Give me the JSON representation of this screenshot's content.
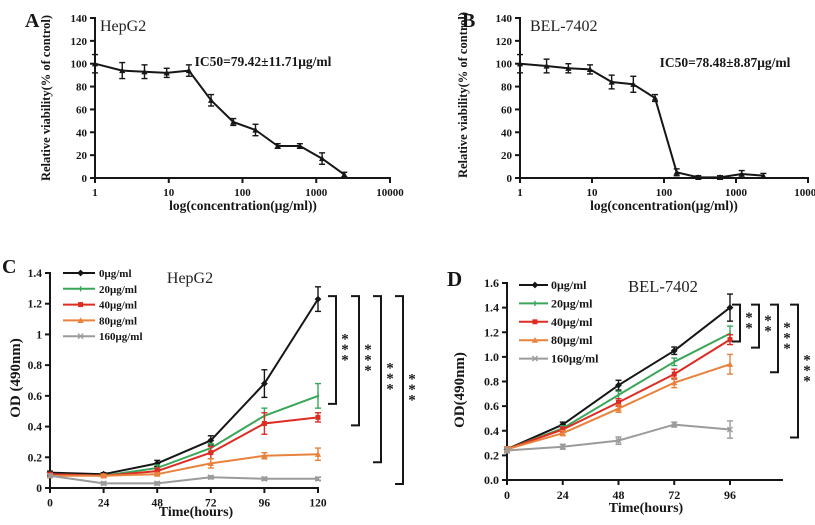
{
  "figure": {
    "background": "#ffffff",
    "description_colors": {
      "axis": "#161616",
      "conc0": "#161616",
      "conc20": "#3aa65a",
      "conc40": "#dd2c23",
      "conc80": "#e8823c",
      "conc160": "#9b9b9b"
    }
  },
  "chart_data": [
    {
      "panel_label": "A",
      "type": "line",
      "title": "HepG2",
      "annotation": "IC50=79.42±11.71μg/ml",
      "xlabel": "log(concentration(μg/ml))",
      "ylabel": "Relative viability(% of control)",
      "xscale": "log",
      "xlim": [
        1,
        10000
      ],
      "ylim": [
        0,
        140
      ],
      "xticks": [
        1,
        10,
        100,
        1000,
        10000
      ],
      "xtick_labels": [
        "1",
        "10",
        "100",
        "1000",
        "10000"
      ],
      "yticks": [
        0,
        20,
        40,
        60,
        80,
        100,
        120,
        140
      ],
      "ytick_labels": [
        "0",
        "20",
        "40",
        "60",
        "80",
        "100",
        "120",
        "140"
      ],
      "grid": false,
      "legend_position": "none",
      "series": [
        {
          "name": "viability",
          "color": "#161616",
          "marker": "triangle",
          "x": [
            1,
            2.34,
            4.69,
            9.38,
            18.75,
            37.5,
            75,
            150,
            300,
            600,
            1200,
            2400
          ],
          "y": [
            100,
            94,
            93,
            92,
            94,
            68,
            49,
            42,
            28,
            28,
            17,
            3
          ],
          "err": [
            8,
            7,
            6,
            4,
            5,
            5,
            3,
            5,
            2,
            2,
            5,
            2
          ]
        }
      ],
      "significance": []
    },
    {
      "panel_label": "B",
      "type": "line",
      "title": "BEL-7402",
      "annotation": "IC50=78.48±8.87μg/ml",
      "xlabel": "log(concentration(μg/ml))",
      "ylabel": "Relative viability(% of control)",
      "xscale": "log",
      "xlim": [
        1,
        10000
      ],
      "ylim": [
        0,
        140
      ],
      "xticks": [
        1,
        10,
        100,
        1000,
        10000
      ],
      "xtick_labels": [
        "1",
        "10",
        "100",
        "1000",
        "10000"
      ],
      "yticks": [
        0,
        20,
        40,
        60,
        80,
        100,
        120,
        140
      ],
      "ytick_labels": [
        "0",
        "20",
        "40",
        "60",
        "80",
        "100",
        "120",
        "140"
      ],
      "grid": false,
      "legend_position": "none",
      "series": [
        {
          "name": "viability",
          "color": "#161616",
          "marker": "triangle",
          "x": [
            1,
            2.34,
            4.69,
            9.38,
            18.75,
            37.5,
            75,
            150,
            300,
            600,
            1200,
            2400
          ],
          "y": [
            100,
            98,
            96,
            95,
            84,
            82,
            70,
            5,
            0.5,
            0.5,
            3.5,
            2
          ],
          "err": [
            8,
            6,
            4,
            4,
            6,
            7,
            3,
            3,
            1.5,
            1.5,
            3,
            2
          ]
        }
      ],
      "significance": []
    },
    {
      "panel_label": "C",
      "type": "line",
      "title": "HepG2",
      "annotation": "",
      "xlabel": "Time(hours)",
      "ylabel": "OD (490nm)",
      "xscale": "linear",
      "xlim": [
        0,
        120
      ],
      "ylim": [
        0,
        1.4
      ],
      "xticks": [
        0,
        24,
        48,
        72,
        96,
        120
      ],
      "xtick_labels": [
        "0",
        "24",
        "48",
        "72",
        "96",
        "120"
      ],
      "yticks": [
        0,
        0.2,
        0.4,
        0.6,
        0.8,
        1,
        1.2,
        1.4
      ],
      "ytick_labels": [
        "0",
        "0.2",
        "0.4",
        "0.6",
        "0.8",
        "1",
        "1.2",
        "1.4"
      ],
      "grid": false,
      "legend_position": "upper-left",
      "series": [
        {
          "name": "0μg/ml",
          "color": "#161616",
          "marker": "diamond",
          "x": [
            0,
            24,
            48,
            72,
            96,
            120
          ],
          "y": [
            0.1,
            0.09,
            0.16,
            0.31,
            0.68,
            1.23
          ],
          "err": [
            0.01,
            0.01,
            0.02,
            0.03,
            0.09,
            0.08
          ]
        },
        {
          "name": "20μg/ml",
          "color": "#3aa65a",
          "marker": "tick",
          "x": [
            0,
            24,
            48,
            72,
            96,
            120
          ],
          "y": [
            0.09,
            0.08,
            0.13,
            0.26,
            0.47,
            0.6
          ],
          "err": [
            0.01,
            0.01,
            0.02,
            0.03,
            0.05,
            0.08
          ]
        },
        {
          "name": "40μg/ml",
          "color": "#dd2c23",
          "marker": "square",
          "x": [
            0,
            24,
            48,
            72,
            96,
            120
          ],
          "y": [
            0.09,
            0.08,
            0.11,
            0.23,
            0.42,
            0.46
          ],
          "err": [
            0.01,
            0.01,
            0.02,
            0.04,
            0.07,
            0.03
          ]
        },
        {
          "name": "80μg/ml",
          "color": "#e8823c",
          "marker": "triangle",
          "x": [
            0,
            24,
            48,
            72,
            96,
            120
          ],
          "y": [
            0.08,
            0.08,
            0.09,
            0.16,
            0.21,
            0.22
          ],
          "err": [
            0.01,
            0.01,
            0.01,
            0.03,
            0.02,
            0.04
          ]
        },
        {
          "name": "160μg/ml",
          "color": "#9b9b9b",
          "marker": "cross",
          "x": [
            0,
            24,
            48,
            72,
            96,
            120
          ],
          "y": [
            0.08,
            0.03,
            0.03,
            0.07,
            0.06,
            0.06
          ],
          "err": [
            0.01,
            0.01,
            0.01,
            0.01,
            0.01,
            0.01
          ]
        }
      ],
      "significance": [
        {
          "stars": "***",
          "vs": 1
        },
        {
          "stars": "***",
          "vs": 2
        },
        {
          "stars": "***",
          "vs": 3
        },
        {
          "stars": "***",
          "vs": 4
        }
      ]
    },
    {
      "panel_label": "D",
      "type": "line",
      "title": "BEL-7402",
      "annotation": "",
      "xlabel": "Time(hours)",
      "ylabel": "OD(490nm)",
      "xscale": "linear",
      "xlim": [
        0,
        96
      ],
      "ylim": [
        0,
        1.6
      ],
      "xticks": [
        0,
        24,
        48,
        72,
        96
      ],
      "xtick_labels": [
        "0",
        "24",
        "48",
        "72",
        "96"
      ],
      "yticks": [
        0,
        0.2,
        0.4,
        0.6,
        0.8,
        1,
        1.2,
        1.4,
        1.6
      ],
      "ytick_labels": [
        "0.0",
        "0.2",
        "0.4",
        "0.6",
        "0.8",
        "1.0",
        "1.2",
        "1.4",
        "1.6"
      ],
      "grid": false,
      "legend_position": "upper-left",
      "series": [
        {
          "name": "0μg/ml",
          "color": "#161616",
          "marker": "diamond",
          "x": [
            0,
            24,
            48,
            72,
            96
          ],
          "y": [
            0.25,
            0.45,
            0.77,
            1.05,
            1.4
          ],
          "err": [
            0.02,
            0.02,
            0.04,
            0.03,
            0.11
          ]
        },
        {
          "name": "20μg/ml",
          "color": "#3aa65a",
          "marker": "tick",
          "x": [
            0,
            24,
            48,
            72,
            96
          ],
          "y": [
            0.25,
            0.42,
            0.69,
            0.96,
            1.19
          ],
          "err": [
            0.02,
            0.02,
            0.03,
            0.03,
            0.06
          ]
        },
        {
          "name": "40μg/ml",
          "color": "#dd2c23",
          "marker": "square",
          "x": [
            0,
            24,
            48,
            72,
            96
          ],
          "y": [
            0.25,
            0.41,
            0.63,
            0.86,
            1.14
          ],
          "err": [
            0.02,
            0.02,
            0.03,
            0.04,
            0.04
          ]
        },
        {
          "name": "80μg/ml",
          "color": "#e8823c",
          "marker": "triangle",
          "x": [
            0,
            24,
            48,
            72,
            96
          ],
          "y": [
            0.25,
            0.38,
            0.58,
            0.79,
            0.94
          ],
          "err": [
            0.02,
            0.02,
            0.03,
            0.04,
            0.08
          ]
        },
        {
          "name": "160μg/ml",
          "color": "#9b9b9b",
          "marker": "cross",
          "x": [
            0,
            24,
            48,
            72,
            96
          ],
          "y": [
            0.24,
            0.27,
            0.32,
            0.45,
            0.41
          ],
          "err": [
            0.02,
            0.02,
            0.03,
            0.02,
            0.07
          ]
        }
      ],
      "significance": [
        {
          "stars": "**",
          "vs": 1
        },
        {
          "stars": "**",
          "vs": 2
        },
        {
          "stars": "***",
          "vs": 3
        },
        {
          "stars": "***",
          "vs": 4
        }
      ]
    }
  ]
}
